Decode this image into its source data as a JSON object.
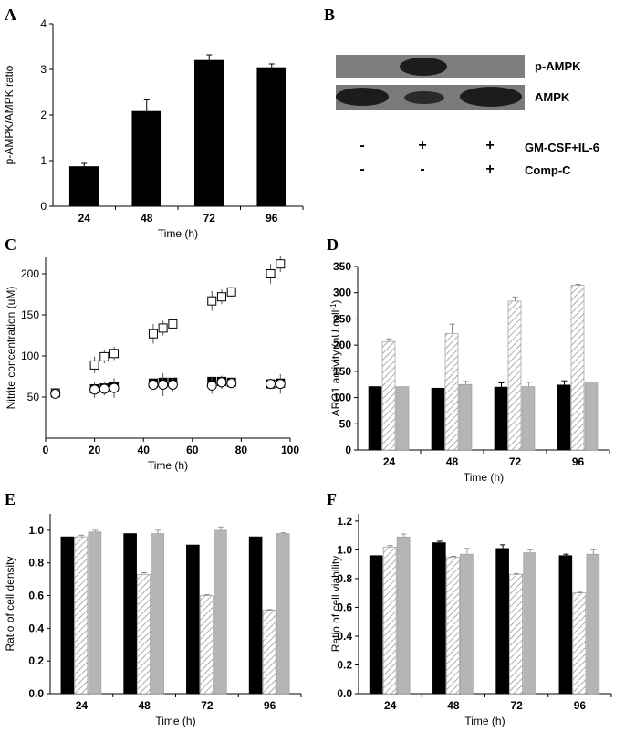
{
  "panel_labels": {
    "a": "A",
    "b": "B",
    "c": "C",
    "d": "D",
    "e": "E",
    "f": "F"
  },
  "colors": {
    "black": "#000000",
    "hatch": "#bfbfbf",
    "gray": "#b5b5b5"
  },
  "blot": {
    "band1_label": "p-AMPK",
    "band2_label": "AMPK",
    "row1_label": "GM-CSF+IL-6",
    "row2_label": "Comp-C",
    "row1_signs": [
      "-",
      "+",
      "+"
    ],
    "row2_signs": [
      "-",
      "-",
      "+"
    ]
  },
  "chart_data": [
    {
      "id": "A",
      "type": "bar",
      "title": "",
      "xlabel": "Time (h)",
      "ylabel": "p-AMPK/AMPK ratio",
      "categories": [
        "24",
        "48",
        "72",
        "96"
      ],
      "series": [
        {
          "name": "ratio",
          "values": [
            0.87,
            2.08,
            3.2,
            3.04
          ],
          "errors": [
            0.07,
            0.25,
            0.12,
            0.08
          ]
        }
      ],
      "ylim": [
        0,
        4
      ],
      "yticks": [
        "0",
        "1",
        "2",
        "3",
        "4"
      ]
    },
    {
      "id": "C",
      "type": "scatter",
      "title": "",
      "xlabel": "Time (h)",
      "ylabel": "Nitrite concentration (uM)",
      "xlim": [
        0,
        100
      ],
      "ylim": [
        0,
        220
      ],
      "xticks": [
        "0",
        "20",
        "40",
        "60",
        "80",
        "100"
      ],
      "yticks": [
        "50",
        "100",
        "150",
        "200"
      ],
      "series": [
        {
          "name": "squares",
          "marker": "square",
          "x": [
            4,
            20,
            24,
            28,
            44,
            48,
            52,
            68,
            72,
            76,
            92,
            96
          ],
          "y": [
            55,
            89,
            99,
            103,
            127,
            134,
            139,
            167,
            172,
            178,
            200,
            212
          ],
          "err": [
            4,
            10,
            8,
            8,
            12,
            9,
            6,
            12,
            9,
            6,
            12,
            10
          ]
        },
        {
          "name": "filled",
          "marker": "half-square",
          "x": [
            20,
            24,
            28,
            44,
            48,
            52,
            68,
            72,
            76,
            92,
            96
          ],
          "y": [
            60,
            61,
            63,
            67,
            68,
            68,
            69,
            69,
            68,
            66,
            67
          ],
          "err": [
            5,
            5,
            5,
            5,
            5,
            5,
            5,
            5,
            5,
            5,
            5
          ]
        },
        {
          "name": "circles",
          "marker": "circle",
          "x": [
            4,
            20,
            24,
            28,
            44,
            48,
            52,
            68,
            72,
            76,
            92,
            96
          ],
          "y": [
            54,
            59,
            60,
            61,
            65,
            65,
            65,
            64,
            68,
            67,
            66,
            66
          ],
          "err": [
            4,
            10,
            8,
            12,
            6,
            14,
            8,
            10,
            8,
            6,
            6,
            12
          ]
        }
      ]
    },
    {
      "id": "D",
      "type": "bar",
      "title": "",
      "xlabel": "Time (h)",
      "ylabel": "ARG1 activity (nU.cell",
      "ylabel_sup": "-1",
      "ylabel_close": ")",
      "categories": [
        "24",
        "48",
        "72",
        "96"
      ],
      "series": [
        {
          "name": "black",
          "values": [
            121,
            118,
            120,
            124
          ],
          "errors": [
            0,
            0,
            8,
            8
          ]
        },
        {
          "name": "hatched",
          "values": [
            207,
            222,
            284,
            314
          ],
          "errors": [
            5,
            18,
            8,
            2
          ]
        },
        {
          "name": "gray",
          "values": [
            121,
            125,
            121,
            128
          ],
          "errors": [
            0,
            6,
            8,
            0
          ]
        }
      ],
      "ylim": [
        0,
        350
      ],
      "yticks": [
        "0",
        "50",
        "100",
        "150",
        "200",
        "250",
        "300",
        "350"
      ]
    },
    {
      "id": "E",
      "type": "bar",
      "title": "",
      "xlabel": "Time (h)",
      "ylabel": "Ratio of cell density",
      "categories": [
        "24",
        "48",
        "72",
        "96"
      ],
      "series": [
        {
          "name": "black",
          "values": [
            0.96,
            0.98,
            0.91,
            0.96
          ],
          "errors": [
            0,
            0,
            0,
            0
          ]
        },
        {
          "name": "hatched",
          "values": [
            0.96,
            0.73,
            0.6,
            0.51
          ],
          "errors": [
            0.01,
            0.01,
            0.005,
            0.005
          ]
        },
        {
          "name": "gray",
          "values": [
            0.99,
            0.98,
            1.0,
            0.98
          ],
          "errors": [
            0.01,
            0.02,
            0.02,
            0.005
          ]
        }
      ],
      "ylim": [
        0,
        1.1
      ],
      "yticks": [
        "0.0",
        "0.2",
        "0.4",
        "0.6",
        "0.8",
        "1.0"
      ]
    },
    {
      "id": "F",
      "type": "bar",
      "title": "",
      "xlabel": "Time (h)",
      "ylabel": "Ratio of cell viability",
      "categories": [
        "24",
        "48",
        "72",
        "96"
      ],
      "series": [
        {
          "name": "black",
          "values": [
            0.96,
            1.05,
            1.01,
            0.96
          ],
          "errors": [
            0,
            0.01,
            0.025,
            0.01
          ]
        },
        {
          "name": "hatched",
          "values": [
            1.02,
            0.95,
            0.83,
            0.7
          ],
          "errors": [
            0.01,
            0.005,
            0.005,
            0.005
          ]
        },
        {
          "name": "gray",
          "values": [
            1.09,
            0.97,
            0.98,
            0.97
          ],
          "errors": [
            0.02,
            0.04,
            0.02,
            0.03
          ]
        }
      ],
      "ylim": [
        0,
        1.25
      ],
      "yticks": [
        "0.0",
        "0.2",
        "0.4",
        "0.6",
        "0.8",
        "1.0",
        "1.2"
      ]
    }
  ]
}
